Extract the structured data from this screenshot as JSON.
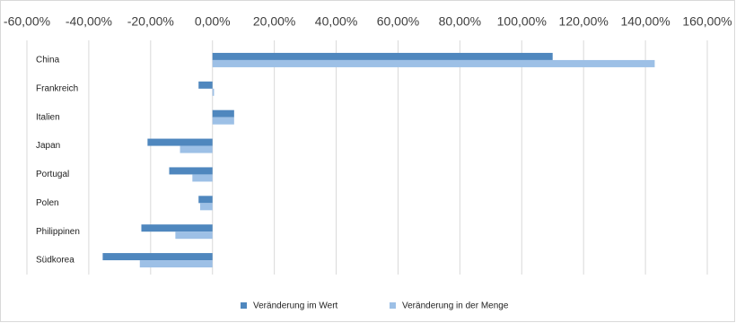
{
  "chart_data": {
    "type": "hbar",
    "categories": [
      "China",
      "Frankreich",
      "Italien",
      "Japan",
      "Portugal",
      "Polen",
      "Philippinen",
      "Südkorea"
    ],
    "series": [
      {
        "name": "Veränderung im Wert",
        "color": "#4f87be",
        "values": [
          110,
          -4.5,
          7,
          -21,
          -14,
          -4.5,
          -23,
          -35.5
        ]
      },
      {
        "name": "Veränderung in der Menge",
        "color": "#9dc0e6",
        "values": [
          143,
          0.5,
          7,
          -10.5,
          -6.5,
          -4,
          -12,
          -23.5
        ]
      }
    ],
    "xlim": [
      -60,
      160
    ],
    "xticks": [
      {
        "value": -60,
        "label": "-60,00%"
      },
      {
        "value": -40,
        "label": "-40,00%"
      },
      {
        "value": -20,
        "label": "-20,00%"
      },
      {
        "value": 0,
        "label": "0,00%"
      },
      {
        "value": 20,
        "label": "20,00%"
      },
      {
        "value": 40,
        "label": "40,00%"
      },
      {
        "value": 60,
        "label": "60,00%"
      },
      {
        "value": 80,
        "label": "80,00%"
      },
      {
        "value": 100,
        "label": "100,00%"
      },
      {
        "value": 120,
        "label": "120,00%"
      },
      {
        "value": 140,
        "label": "140,00%"
      },
      {
        "value": 160,
        "label": "160,00%"
      }
    ],
    "grid": true,
    "legend": "bottom"
  }
}
